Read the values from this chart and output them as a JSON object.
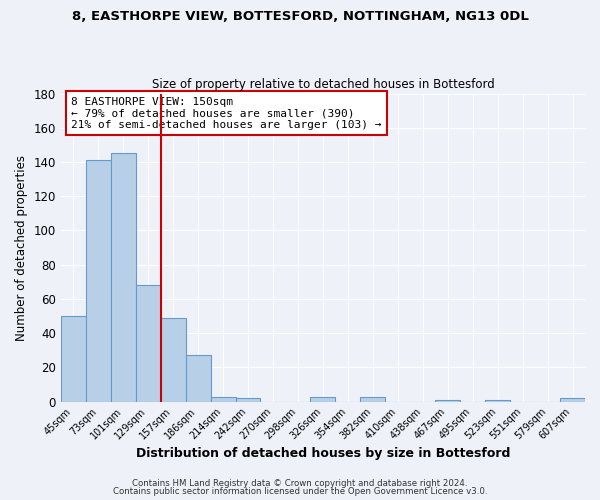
{
  "title": "8, EASTHORPE VIEW, BOTTESFORD, NOTTINGHAM, NG13 0DL",
  "subtitle": "Size of property relative to detached houses in Bottesford",
  "xlabel": "Distribution of detached houses by size in Bottesford",
  "ylabel": "Number of detached properties",
  "bar_labels": [
    "45sqm",
    "73sqm",
    "101sqm",
    "129sqm",
    "157sqm",
    "186sqm",
    "214sqm",
    "242sqm",
    "270sqm",
    "298sqm",
    "326sqm",
    "354sqm",
    "382sqm",
    "410sqm",
    "438sqm",
    "467sqm",
    "495sqm",
    "523sqm",
    "551sqm",
    "579sqm",
    "607sqm"
  ],
  "bar_values": [
    50,
    141,
    145,
    68,
    49,
    27,
    3,
    2,
    0,
    0,
    3,
    0,
    3,
    0,
    0,
    1,
    0,
    1,
    0,
    0,
    2
  ],
  "bar_color": "#b8cfe8",
  "bar_edge_color": "#6699cc",
  "ylim": [
    0,
    180
  ],
  "yticks": [
    0,
    20,
    40,
    60,
    80,
    100,
    120,
    140,
    160,
    180
  ],
  "property_line_color": "#cc0000",
  "annotation_title": "8 EASTHORPE VIEW: 150sqm",
  "annotation_line1": "← 79% of detached houses are smaller (390)",
  "annotation_line2": "21% of semi-detached houses are larger (103) →",
  "annotation_box_color": "#cc0000",
  "footer_line1": "Contains HM Land Registry data © Crown copyright and database right 2024.",
  "footer_line2": "Contains public sector information licensed under the Open Government Licence v3.0.",
  "background_color": "#eef2f8",
  "grid_color": "#ffffff"
}
